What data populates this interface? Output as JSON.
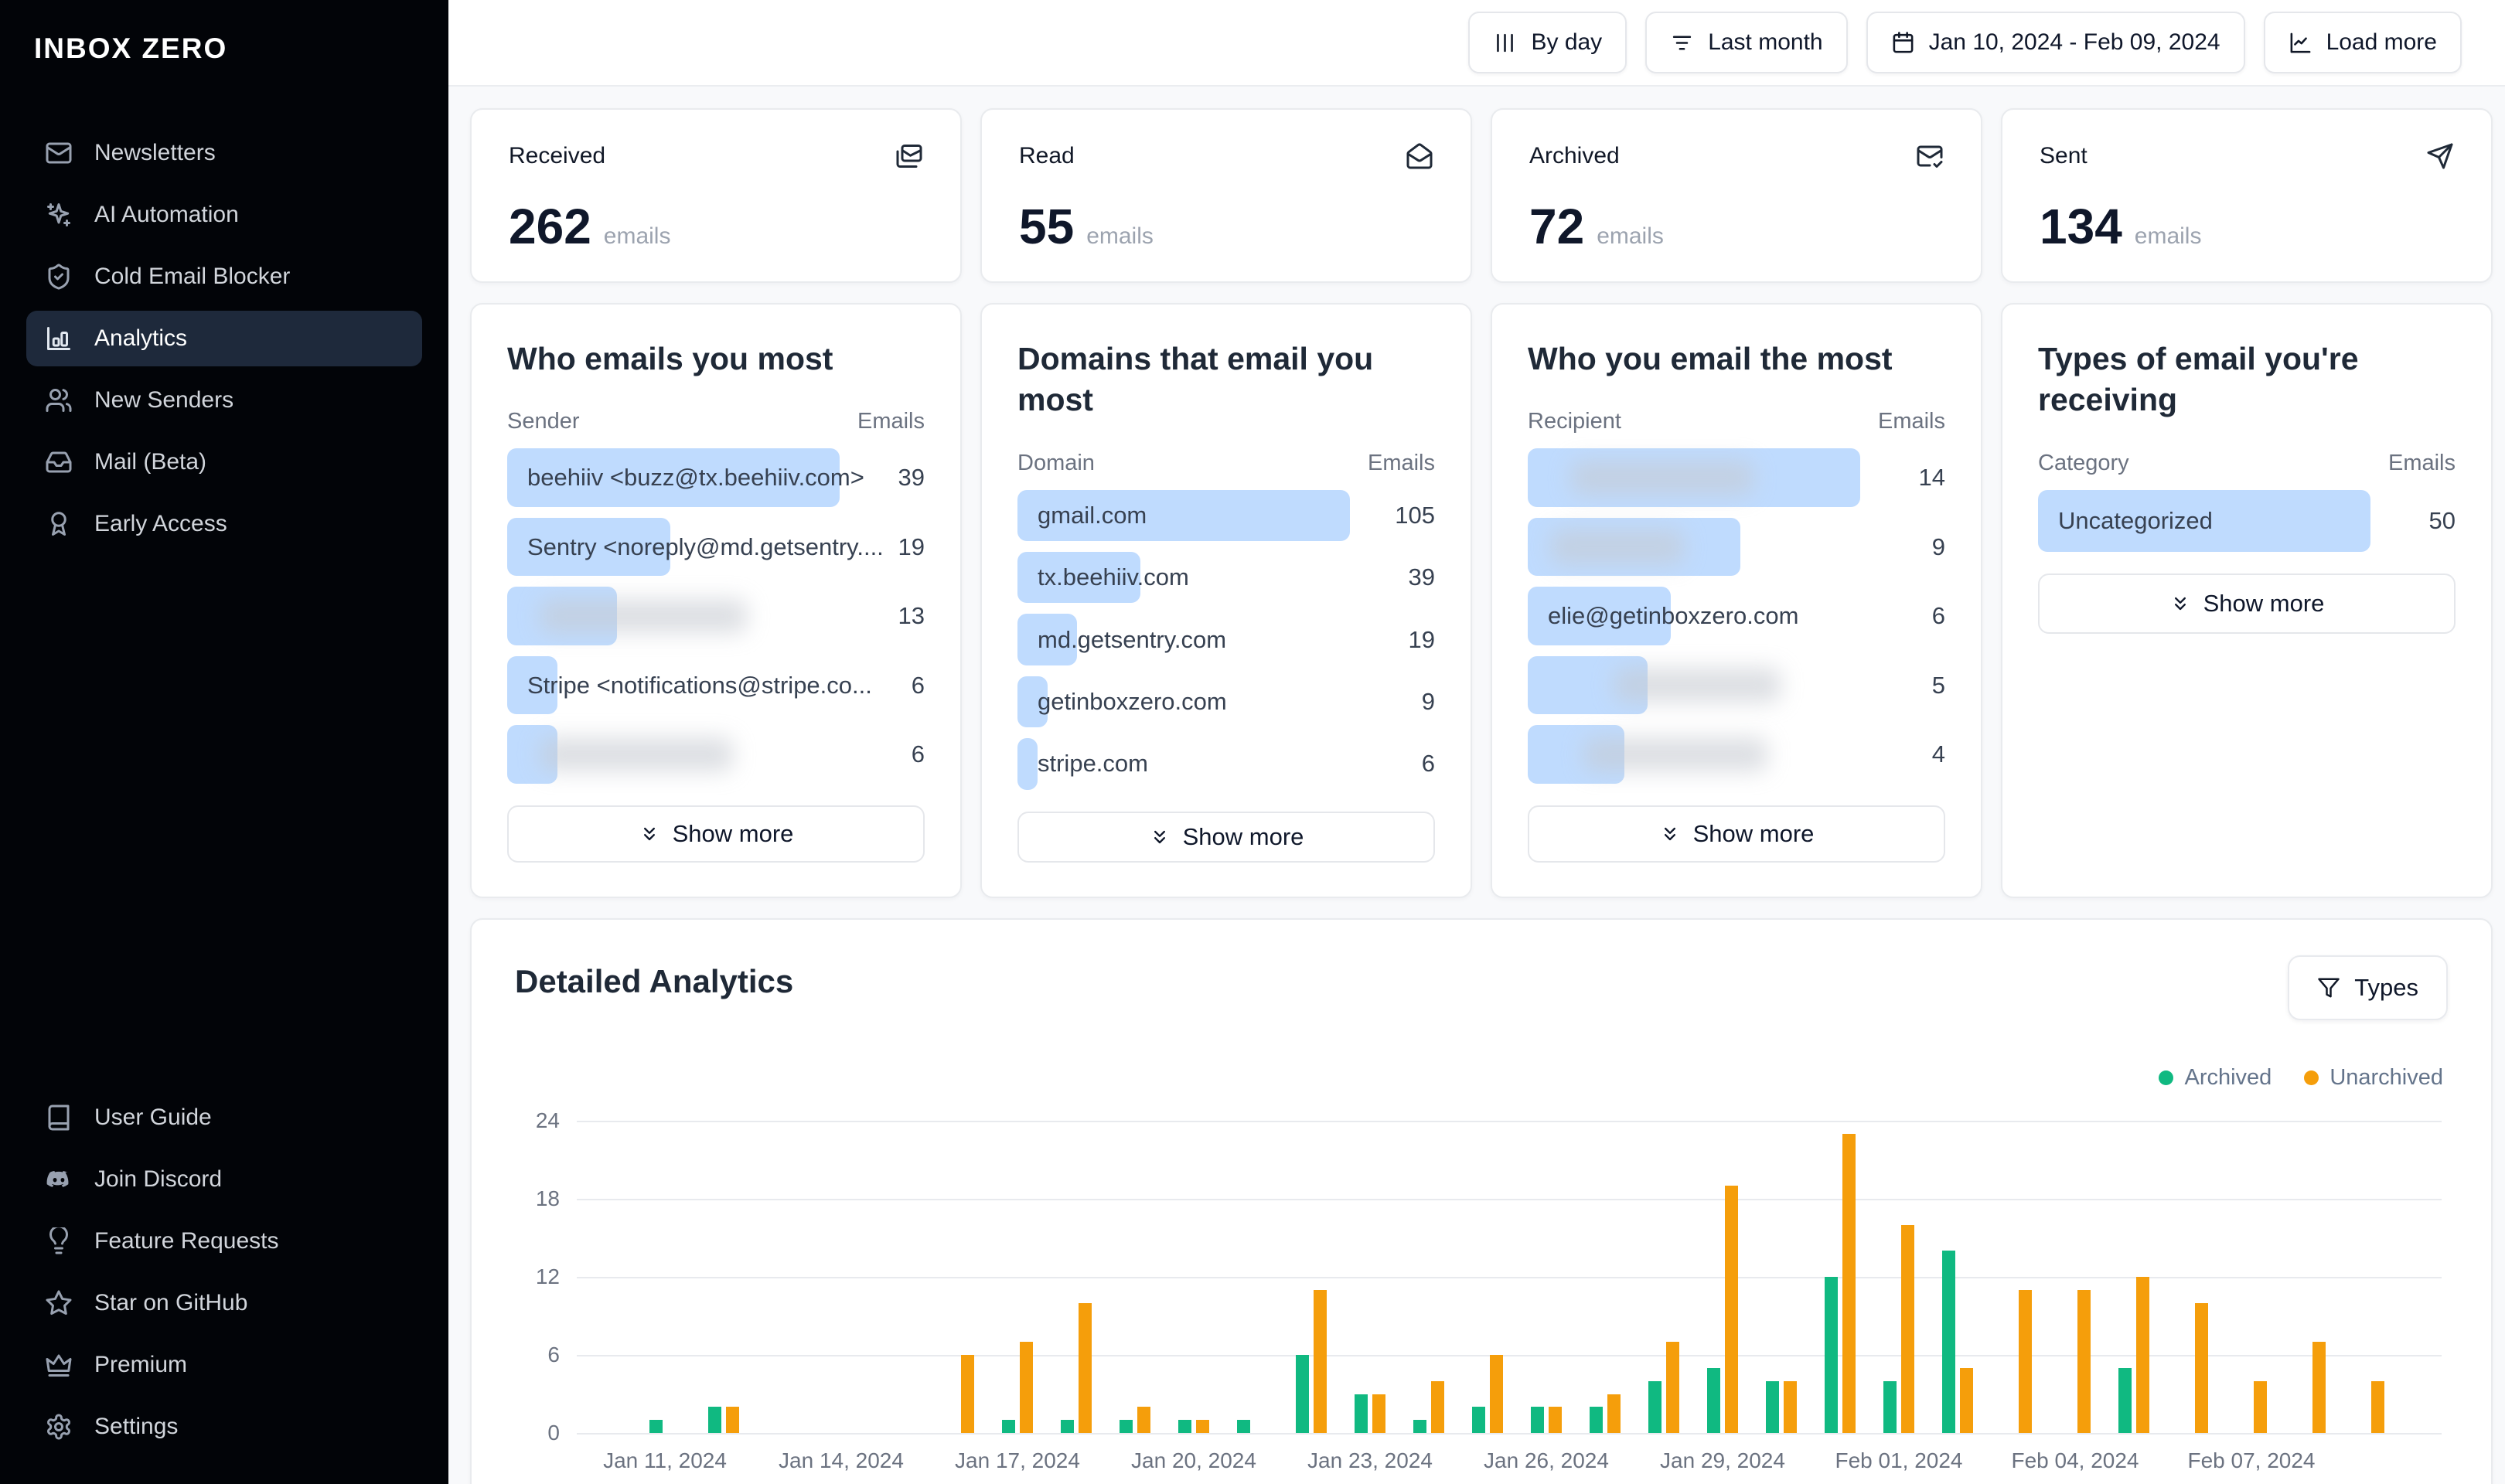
{
  "sidebar": {
    "logo": "INBOX ZERO",
    "items_top": [
      {
        "icon": "mail",
        "label": "Newsletters",
        "active": false
      },
      {
        "icon": "sparkles",
        "label": "AI Automation",
        "active": false
      },
      {
        "icon": "shield-check",
        "label": "Cold Email Blocker",
        "active": false
      },
      {
        "icon": "bar-chart",
        "label": "Analytics",
        "active": true
      },
      {
        "icon": "users",
        "label": "New Senders",
        "active": false
      },
      {
        "icon": "inbox",
        "label": "Mail (Beta)",
        "active": false
      },
      {
        "icon": "ribbon",
        "label": "Early Access",
        "active": false
      }
    ],
    "items_bottom": [
      {
        "icon": "book",
        "label": "User Guide",
        "active": false
      },
      {
        "icon": "discord",
        "label": "Join Discord",
        "active": false
      },
      {
        "icon": "lightbulb",
        "label": "Feature Requests",
        "active": false
      },
      {
        "icon": "star",
        "label": "Star on GitHub",
        "active": false
      },
      {
        "icon": "crown",
        "label": "Premium",
        "active": false
      },
      {
        "icon": "gear",
        "label": "Settings",
        "active": false
      }
    ]
  },
  "topbar": {
    "buttons": [
      {
        "icon": "columns",
        "label": "By day"
      },
      {
        "icon": "list-filter",
        "label": "Last month"
      },
      {
        "icon": "calendar",
        "label": "Jan 10, 2024 - Feb 09, 2024"
      },
      {
        "icon": "chart-line",
        "label": "Load more"
      }
    ]
  },
  "stats": [
    {
      "label": "Received",
      "icon": "mails",
      "value": "262",
      "suffix": "emails"
    },
    {
      "label": "Read",
      "icon": "mail-open",
      "value": "55",
      "suffix": "emails"
    },
    {
      "label": "Archived",
      "icon": "mail-check",
      "value": "72",
      "suffix": "emails"
    },
    {
      "label": "Sent",
      "icon": "send",
      "value": "134",
      "suffix": "emails"
    }
  ],
  "panels": [
    {
      "title": "Who emails you most",
      "col1": "Sender",
      "col2": "Emails",
      "show_more": "Show more",
      "rows": [
        {
          "label": "beehiiv <buzz@tx.beehiiv.com>",
          "value": "39",
          "bar_pct": 100,
          "blurred": false
        },
        {
          "label": "Sentry <noreply@md.getsentry....",
          "value": "19",
          "bar_pct": 49,
          "blurred": false
        },
        {
          "label": "",
          "value": "13",
          "bar_pct": 33,
          "blurred": true,
          "blur_left": 10,
          "blur_width": 62
        },
        {
          "label": "Stripe <notifications@stripe.co...",
          "value": "6",
          "bar_pct": 15,
          "blurred": false
        },
        {
          "label": "",
          "value": "6",
          "bar_pct": 15,
          "blurred": true,
          "blur_left": 10,
          "blur_width": 58
        }
      ]
    },
    {
      "title": "Domains that email you most",
      "col1": "Domain",
      "col2": "Emails",
      "show_more": "Show more",
      "rows": [
        {
          "label": "gmail.com",
          "value": "105",
          "bar_pct": 100,
          "blurred": false
        },
        {
          "label": "tx.beehiiv.com",
          "value": "39",
          "bar_pct": 37,
          "blurred": false
        },
        {
          "label": "md.getsentry.com",
          "value": "19",
          "bar_pct": 18,
          "blurred": false
        },
        {
          "label": "getinboxzero.com",
          "value": "9",
          "bar_pct": 9,
          "blurred": false
        },
        {
          "label": "stripe.com",
          "value": "6",
          "bar_pct": 6,
          "blurred": false
        }
      ]
    },
    {
      "title": "Who you email the most",
      "col1": "Recipient",
      "col2": "Emails",
      "show_more": "Show more",
      "rows": [
        {
          "label": "",
          "value": "14",
          "bar_pct": 100,
          "blurred": true,
          "blur_left": 13,
          "blur_width": 55
        },
        {
          "label": "",
          "value": "9",
          "bar_pct": 64,
          "blurred": true,
          "blur_left": 7,
          "blur_width": 40
        },
        {
          "label": "elie@getinboxzero.com",
          "value": "6",
          "bar_pct": 43,
          "blurred": false
        },
        {
          "label": "",
          "value": "5",
          "bar_pct": 36,
          "blurred": true,
          "blur_left": 26,
          "blur_width": 50
        },
        {
          "label": "",
          "value": "4",
          "bar_pct": 29,
          "blurred": true,
          "blur_left": 17,
          "blur_width": 55
        }
      ]
    },
    {
      "title": "Types of email you're receiving",
      "col1": "Category",
      "col2": "Emails",
      "show_more": "Show more",
      "rows": [
        {
          "label": "Uncategorized",
          "value": "50",
          "bar_pct": 100,
          "blurred": false
        }
      ]
    }
  ],
  "detailed": {
    "title": "Detailed Analytics",
    "types_label": "Types"
  },
  "chart_data": {
    "type": "bar",
    "title": "Detailed Analytics",
    "xlabel": "",
    "ylabel": "",
    "grid": true,
    "legend_position": "top-right",
    "ylim": [
      0,
      24
    ],
    "yticks": [
      24,
      18,
      12,
      6,
      0
    ],
    "x": [
      "Jan 10, 2024",
      "Jan 11, 2024",
      "Jan 12, 2024",
      "Jan 13, 2024",
      "Jan 14, 2024",
      "Jan 15, 2024",
      "Jan 16, 2024",
      "Jan 17, 2024",
      "Jan 18, 2024",
      "Jan 19, 2024",
      "Jan 20, 2024",
      "Jan 21, 2024",
      "Jan 22, 2024",
      "Jan 23, 2024",
      "Jan 24, 2024",
      "Jan 25, 2024",
      "Jan 26, 2024",
      "Jan 27, 2024",
      "Jan 28, 2024",
      "Jan 29, 2024",
      "Jan 30, 2024",
      "Jan 31, 2024",
      "Feb 01, 2024",
      "Feb 02, 2024",
      "Feb 03, 2024",
      "Feb 04, 2024",
      "Feb 05, 2024",
      "Feb 06, 2024",
      "Feb 07, 2024",
      "Feb 08, 2024",
      "Feb 09, 2024"
    ],
    "series": [
      {
        "name": "Archived",
        "color": "#10b981",
        "values": [
          0,
          1,
          2,
          0,
          0,
          0,
          0,
          1,
          1,
          1,
          1,
          1,
          6,
          3,
          1,
          2,
          2,
          2,
          4,
          5,
          4,
          12,
          4,
          14,
          0,
          0,
          5,
          0,
          0,
          0,
          0
        ]
      },
      {
        "name": "Unarchived",
        "color": "#f59e0b",
        "values": [
          0,
          0,
          2,
          0,
          0,
          0,
          6,
          7,
          10,
          2,
          1,
          0,
          11,
          3,
          4,
          6,
          2,
          3,
          7,
          19,
          4,
          23,
          16,
          5,
          11,
          11,
          12,
          10,
          4,
          7,
          4
        ]
      }
    ],
    "xticks": [
      {
        "index": 1,
        "label": "Jan 11, 2024"
      },
      {
        "index": 4,
        "label": "Jan 14, 2024"
      },
      {
        "index": 7,
        "label": "Jan 17, 2024"
      },
      {
        "index": 10,
        "label": "Jan 20, 2024"
      },
      {
        "index": 13,
        "label": "Jan 23, 2024"
      },
      {
        "index": 16,
        "label": "Jan 26, 2024"
      },
      {
        "index": 19,
        "label": "Jan 29, 2024"
      },
      {
        "index": 22,
        "label": "Feb 01, 2024"
      },
      {
        "index": 25,
        "label": "Feb 04, 2024"
      },
      {
        "index": 28,
        "label": "Feb 07, 2024"
      }
    ],
    "colors": {
      "accent_bar_bg": "#bfdbfe",
      "archived": "#10b981",
      "unarchived": "#f59e0b"
    }
  }
}
